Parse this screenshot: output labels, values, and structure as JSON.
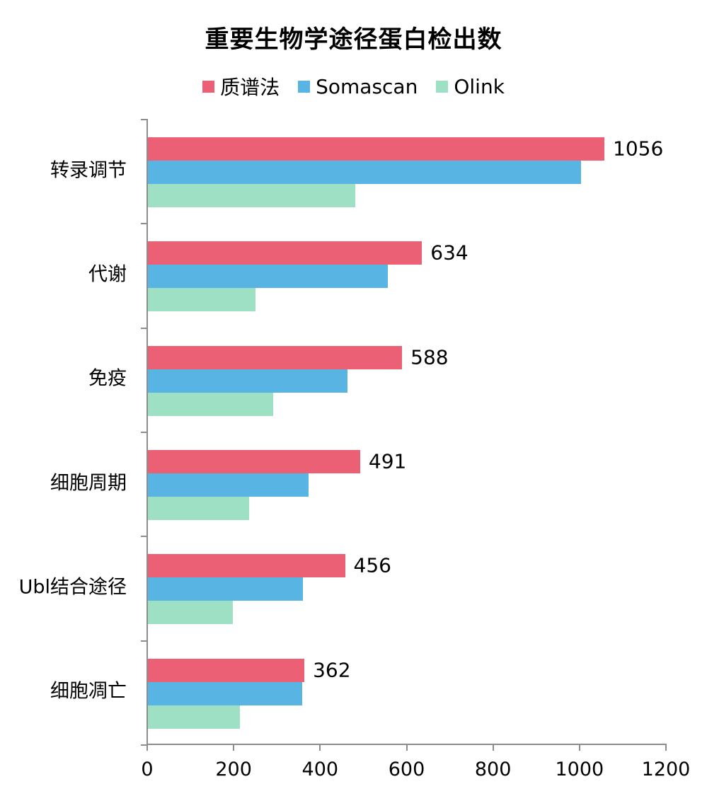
{
  "chart_data": {
    "type": "bar",
    "orientation": "horizontal",
    "title": "重要生物学途径蛋白检出数",
    "xlabel": "",
    "ylabel": "",
    "xlim": [
      0,
      1200
    ],
    "x_ticks": [
      "0",
      "200",
      "400",
      "600",
      "800",
      "1000",
      "1200"
    ],
    "grid": false,
    "legend_position": "top",
    "categories": [
      "转录调节",
      "代谢",
      "免疫",
      "细胞周期",
      "Ubl结合途径",
      "细胞凋亡"
    ],
    "series": [
      {
        "name": "质谱法",
        "color": "#ec6076",
        "values": [
          1056,
          634,
          588,
          491,
          456,
          362
        ],
        "data_labels": [
          "1056",
          "634",
          "588",
          "491",
          "456",
          "362"
        ]
      },
      {
        "name": "Somascan",
        "color": "#57b4e3",
        "values": [
          1002,
          555,
          462,
          372,
          359,
          357
        ]
      },
      {
        "name": "Olink",
        "color": "#9de0c3",
        "values": [
          480,
          249,
          290,
          234,
          196,
          213
        ]
      }
    ]
  }
}
